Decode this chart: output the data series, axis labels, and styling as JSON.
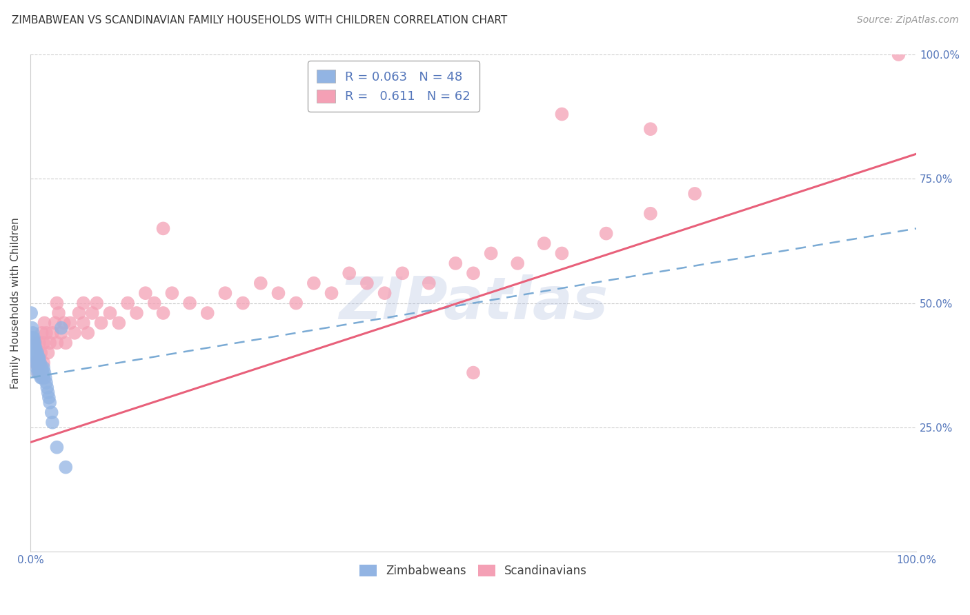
{
  "title": "ZIMBABWEAN VS SCANDINAVIAN FAMILY HOUSEHOLDS WITH CHILDREN CORRELATION CHART",
  "source": "Source: ZipAtlas.com",
  "ylabel": "Family Households with Children",
  "watermark": "ZIPatlas",
  "legend_blue_r": "0.063",
  "legend_blue_n": "48",
  "legend_pink_r": "0.611",
  "legend_pink_n": "62",
  "blue_color": "#92b4e3",
  "pink_color": "#f4a0b5",
  "trend_blue_color": "#7aaad4",
  "trend_pink_color": "#e8607a",
  "axis_label_color": "#5577bb",
  "grid_color": "#cccccc",
  "xlim": [
    0,
    1
  ],
  "ylim": [
    0,
    1
  ],
  "title_fontsize": 11,
  "source_fontsize": 10,
  "axis_fontsize": 11,
  "tick_fontsize": 11,
  "watermark_color": "#aabbdd",
  "watermark_alpha": 0.3,
  "watermark_fontsize": 62,
  "zimbabwean_x": [
    0.001,
    0.002,
    0.002,
    0.003,
    0.003,
    0.003,
    0.004,
    0.004,
    0.004,
    0.005,
    0.005,
    0.005,
    0.005,
    0.006,
    0.006,
    0.006,
    0.007,
    0.007,
    0.007,
    0.008,
    0.008,
    0.008,
    0.009,
    0.009,
    0.01,
    0.01,
    0.01,
    0.011,
    0.011,
    0.012,
    0.012,
    0.013,
    0.013,
    0.014,
    0.015,
    0.015,
    0.016,
    0.017,
    0.018,
    0.019,
    0.02,
    0.021,
    0.022,
    0.024,
    0.025,
    0.03,
    0.035,
    0.04
  ],
  "zimbabwean_y": [
    0.48,
    0.45,
    0.43,
    0.44,
    0.43,
    0.41,
    0.43,
    0.42,
    0.4,
    0.42,
    0.41,
    0.4,
    0.39,
    0.41,
    0.4,
    0.38,
    0.4,
    0.39,
    0.37,
    0.4,
    0.38,
    0.36,
    0.39,
    0.37,
    0.39,
    0.38,
    0.36,
    0.38,
    0.36,
    0.37,
    0.35,
    0.37,
    0.35,
    0.36,
    0.37,
    0.35,
    0.36,
    0.35,
    0.34,
    0.33,
    0.32,
    0.31,
    0.3,
    0.28,
    0.26,
    0.21,
    0.45,
    0.17
  ],
  "scandinavian_x": [
    0.005,
    0.006,
    0.007,
    0.008,
    0.009,
    0.01,
    0.011,
    0.012,
    0.013,
    0.015,
    0.015,
    0.016,
    0.018,
    0.02,
    0.022,
    0.025,
    0.028,
    0.03,
    0.032,
    0.035,
    0.038,
    0.04,
    0.045,
    0.05,
    0.055,
    0.06,
    0.065,
    0.07,
    0.075,
    0.08,
    0.09,
    0.1,
    0.11,
    0.12,
    0.13,
    0.14,
    0.15,
    0.16,
    0.18,
    0.2,
    0.22,
    0.24,
    0.26,
    0.28,
    0.3,
    0.32,
    0.34,
    0.36,
    0.38,
    0.4,
    0.42,
    0.45,
    0.48,
    0.5,
    0.52,
    0.55,
    0.58,
    0.6,
    0.65,
    0.7,
    0.75,
    0.98
  ],
  "scandinavian_y": [
    0.38,
    0.42,
    0.38,
    0.4,
    0.36,
    0.42,
    0.38,
    0.4,
    0.44,
    0.42,
    0.38,
    0.46,
    0.44,
    0.4,
    0.42,
    0.44,
    0.46,
    0.42,
    0.48,
    0.44,
    0.46,
    0.42,
    0.46,
    0.44,
    0.48,
    0.46,
    0.44,
    0.48,
    0.5,
    0.46,
    0.48,
    0.46,
    0.5,
    0.48,
    0.52,
    0.5,
    0.48,
    0.52,
    0.5,
    0.48,
    0.52,
    0.5,
    0.54,
    0.52,
    0.5,
    0.54,
    0.52,
    0.56,
    0.54,
    0.52,
    0.56,
    0.54,
    0.58,
    0.56,
    0.6,
    0.58,
    0.62,
    0.6,
    0.64,
    0.68,
    0.72,
    1.0
  ],
  "scan_outliers_x": [
    0.15,
    0.6,
    0.7,
    0.03,
    0.06,
    0.5
  ],
  "scan_outliers_y": [
    0.65,
    0.88,
    0.85,
    0.5,
    0.5,
    0.36
  ],
  "trend_blue_x0": 0.0,
  "trend_blue_y0": 0.35,
  "trend_blue_x1": 1.0,
  "trend_blue_y1": 0.65,
  "trend_pink_x0": 0.0,
  "trend_pink_y0": 0.22,
  "trend_pink_x1": 1.0,
  "trend_pink_y1": 0.8
}
